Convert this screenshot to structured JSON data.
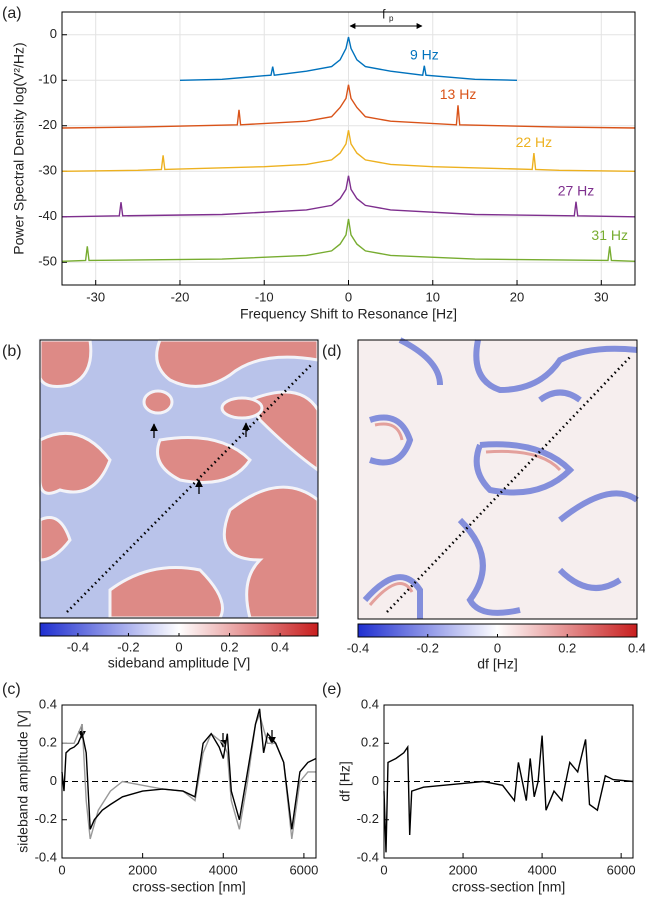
{
  "chart_data": [
    {
      "type": "line",
      "label": "(a)",
      "xlabel": "Frequency Shift to Resonance [Hz]",
      "ylabel": "Power Spectral Density log(V²/Hz)",
      "annotation": "f",
      "annotation_sub": "p",
      "xlim": [
        -34,
        34
      ],
      "ylim": [
        -55,
        5
      ],
      "xticks": [
        -30,
        -20,
        -10,
        0,
        10,
        20,
        30
      ],
      "yticks": [
        0,
        -10,
        -20,
        -30,
        -40,
        -50
      ],
      "grid": true,
      "series": [
        {
          "label": "9 Hz",
          "color": "#0072bd",
          "x": [
            -20,
            -15,
            -10,
            -9.2,
            -9,
            -8.8,
            -5,
            -2,
            -1,
            -0.3,
            0,
            0.3,
            1,
            2,
            5,
            8.8,
            9,
            9.2,
            15,
            20
          ],
          "values": [
            -10,
            -9.8,
            -9,
            -8.9,
            -7,
            -8.9,
            -8,
            -7,
            -5.5,
            -3,
            -0.5,
            -3,
            -5.5,
            -7,
            -8,
            -8.9,
            -6.8,
            -8.9,
            -9.8,
            -10
          ]
        },
        {
          "label": "13 Hz",
          "color": "#d95319",
          "x": [
            -34,
            -25,
            -13.2,
            -13,
            -12.8,
            -5,
            -2,
            -1,
            -0.3,
            0,
            0.3,
            1,
            2,
            5,
            12.8,
            13,
            13.2,
            25,
            34
          ],
          "values": [
            -20.5,
            -20.3,
            -19.8,
            -16.5,
            -19.8,
            -19,
            -18,
            -16,
            -14,
            -11,
            -14,
            -16,
            -18,
            -19,
            -19.8,
            -15.5,
            -19.8,
            -20.3,
            -20.5
          ]
        },
        {
          "label": "22 Hz",
          "color": "#edb120",
          "x": [
            -34,
            -25,
            -22.2,
            -22,
            -21.8,
            -10,
            -5,
            -2,
            -1,
            -0.3,
            0,
            0.3,
            1,
            2,
            5,
            10,
            21.8,
            22,
            22.2,
            25,
            34
          ],
          "values": [
            -30,
            -29.8,
            -29.6,
            -26.5,
            -29.6,
            -29,
            -28.5,
            -27.5,
            -26,
            -24,
            -21,
            -24,
            -26,
            -27.5,
            -28.5,
            -29,
            -29.6,
            -26,
            -29.6,
            -29.8,
            -30
          ]
        },
        {
          "label": "27 Hz",
          "color": "#7e2f8e",
          "x": [
            -34,
            -27.2,
            -27,
            -26.8,
            -15,
            -5,
            -2,
            -1,
            -0.3,
            0,
            0.3,
            1,
            2,
            5,
            15,
            26.8,
            27,
            27.2,
            34
          ],
          "values": [
            -40,
            -39.8,
            -36.8,
            -39.8,
            -39.5,
            -38.5,
            -37.5,
            -36,
            -34,
            -31,
            -34,
            -36,
            -37.5,
            -38.5,
            -39.5,
            -39.8,
            -36.7,
            -39.8,
            -40
          ]
        },
        {
          "label": "31 Hz",
          "color": "#77ac30",
          "x": [
            -34,
            -31.2,
            -31,
            -30.8,
            -15,
            -5,
            -2,
            -1,
            -0.3,
            0,
            0.3,
            1,
            2,
            5,
            15,
            30.8,
            31,
            31.2,
            34
          ],
          "values": [
            -49.8,
            -49.6,
            -46.5,
            -49.6,
            -49.3,
            -48.5,
            -47.5,
            -46,
            -44,
            -40.5,
            -44,
            -46,
            -47.5,
            -48.5,
            -49.3,
            -49.6,
            -46.5,
            -49.6,
            -49.8
          ]
        }
      ]
    },
    {
      "type": "image",
      "label": "(b)",
      "colorbar": {
        "label": "sideband amplitude [V]",
        "clim": [
          -0.55,
          0.55
        ],
        "ticks": [
          -0.4,
          -0.2,
          0,
          0.2,
          0.4
        ]
      }
    },
    {
      "type": "line",
      "label": "(c)",
      "xlabel": "cross-section [nm]",
      "ylabel": "sideband amplitude [V]",
      "xlim": [
        0,
        6300
      ],
      "ylim": [
        -0.4,
        0.4
      ],
      "xticks": [
        0,
        2000,
        4000,
        6000
      ],
      "yticks": [
        -0.4,
        -0.2,
        0,
        0.2,
        0.4
      ],
      "grid": false,
      "hline": 0,
      "series": [
        {
          "color": "#999999",
          "x": [
            0,
            300,
            500,
            600,
            700,
            900,
            1200,
            1500,
            2000,
            2500,
            3000,
            3300,
            3500,
            3700,
            4000,
            4100,
            4200,
            4400,
            4600,
            4800,
            4900,
            5100,
            5300,
            5500,
            5700,
            5900,
            6100,
            6300
          ],
          "values": [
            0.2,
            0.2,
            0.3,
            -0.1,
            -0.3,
            -0.15,
            -0.05,
            0,
            -0.02,
            -0.04,
            -0.05,
            -0.1,
            0.15,
            0.25,
            0.2,
            0.15,
            -0.1,
            -0.25,
            0,
            0.3,
            0.35,
            0.2,
            0.2,
            0.1,
            -0.3,
            0,
            0.05,
            0.05
          ]
        },
        {
          "color": "#000000",
          "x": [
            0,
            50,
            100,
            200,
            300,
            400,
            500,
            600,
            700,
            800,
            1000,
            1200,
            1500,
            2000,
            2500,
            3000,
            3300,
            3500,
            3700,
            3900,
            4000,
            4100,
            4200,
            4400,
            4600,
            4800,
            4900,
            5000,
            5100,
            5300,
            5500,
            5700,
            5900,
            6100,
            6300
          ],
          "values": [
            0.05,
            -0.05,
            0.15,
            0.17,
            0.18,
            0.2,
            0.25,
            0.15,
            -0.25,
            -0.2,
            -0.15,
            -0.12,
            -0.08,
            -0.05,
            -0.04,
            -0.05,
            -0.08,
            0.2,
            0.25,
            0.18,
            0.12,
            0.25,
            -0.05,
            -0.2,
            0.05,
            0.3,
            0.38,
            0.15,
            0.25,
            0.2,
            0.1,
            -0.25,
            0.05,
            0.1,
            0.12
          ]
        }
      ]
    },
    {
      "type": "image",
      "label": "(d)",
      "colorbar": {
        "label": "df [Hz]",
        "clim": [
          -0.4,
          0.4
        ],
        "ticks": [
          -0.4,
          -0.2,
          0,
          0.2,
          0.4
        ]
      }
    },
    {
      "type": "line",
      "label": "(e)",
      "xlabel": "cross-section [nm]",
      "ylabel": "df [Hz]",
      "xlim": [
        0,
        6300
      ],
      "ylim": [
        -0.4,
        0.4
      ],
      "xticks": [
        0,
        2000,
        4000,
        6000
      ],
      "yticks": [
        -0.4,
        -0.2,
        0,
        0.2,
        0.4
      ],
      "grid": false,
      "hline": 0,
      "series": [
        {
          "color": "#000000",
          "x": [
            0,
            50,
            100,
            300,
            500,
            600,
            650,
            700,
            1000,
            1500,
            2000,
            2500,
            3000,
            3300,
            3400,
            3600,
            3700,
            3800,
            3900,
            4000,
            4100,
            4300,
            4500,
            4700,
            4900,
            5100,
            5200,
            5400,
            5600,
            5800,
            6300
          ],
          "values": [
            -0.05,
            -0.37,
            0.1,
            0.12,
            0.15,
            0.18,
            -0.28,
            -0.05,
            -0.03,
            -0.02,
            -0.01,
            0,
            -0.02,
            -0.1,
            0.1,
            -0.1,
            0.12,
            -0.08,
            0,
            0.24,
            -0.15,
            -0.05,
            -0.1,
            0.1,
            0.05,
            0.22,
            -0.12,
            -0.15,
            0.03,
            0.01,
            0
          ]
        }
      ]
    }
  ]
}
